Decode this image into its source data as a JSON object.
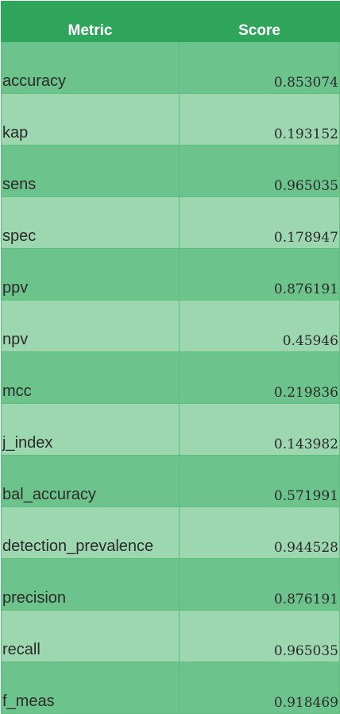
{
  "chart_data": {
    "type": "table",
    "columns": [
      "Metric",
      "Score"
    ],
    "rows": [
      {
        "metric": "accuracy",
        "score": "0.853074",
        "value": 0.853074
      },
      {
        "metric": "kap",
        "score": "0.193152",
        "value": 0.193152
      },
      {
        "metric": "sens",
        "score": "0.965035",
        "value": 0.965035
      },
      {
        "metric": "spec",
        "score": "0.178947",
        "value": 0.178947
      },
      {
        "metric": "ppv",
        "score": "0.876191",
        "value": 0.876191
      },
      {
        "metric": "npv",
        "score": "0.45946",
        "value": 0.45946
      },
      {
        "metric": "mcc",
        "score": "0.219836",
        "value": 0.219836
      },
      {
        "metric": "j_index",
        "score": "0.143982",
        "value": 0.143982
      },
      {
        "metric": "bal_accuracy",
        "score": "0.571991",
        "value": 0.571991
      },
      {
        "metric": "detection_prevalence",
        "score": "0.944528",
        "value": 0.944528
      },
      {
        "metric": "precision",
        "score": "0.876191",
        "value": 0.876191
      },
      {
        "metric": "recall",
        "score": "0.965035",
        "value": 0.965035
      },
      {
        "metric": "f_meas",
        "score": "0.918469",
        "value": 0.918469
      }
    ]
  },
  "colors": {
    "header_bg": "#2ea55a",
    "header_text": "#ffffff",
    "row_odd_bg": "#6cc38b",
    "row_even_bg": "#9dd7b0",
    "grid_line": "#5cbd7e",
    "cell_text": "#2b2b2b"
  }
}
